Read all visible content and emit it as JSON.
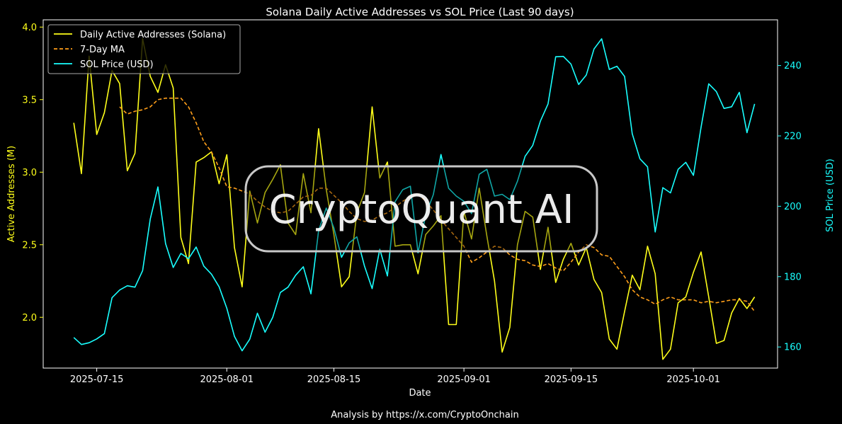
{
  "chart_data": {
    "type": "line",
    "title": "Solana Daily Active Addresses vs SOL Price (Last 90 days)",
    "xlabel": "Date",
    "ylabel_left": "Active Addresses (M)",
    "ylabel_right": "SOL Price (USD)",
    "footer": "Analysis by https://x.com/CryptoOnchain",
    "watermark": "CryptoQuant AI",
    "x_start": "2025-07-12",
    "x_end": "2025-10-08",
    "xlim": [
      "2025-07-08",
      "2025-10-12"
    ],
    "ylim_left": [
      1.65,
      4.05
    ],
    "ylim_right": [
      154,
      253
    ],
    "x_ticks": [
      "2025-07-15",
      "2025-08-01",
      "2025-08-15",
      "2025-09-01",
      "2025-09-15",
      "2025-10-01"
    ],
    "y_ticks_left": [
      "2.0",
      "2.5",
      "3.0",
      "3.5",
      "4.0"
    ],
    "y_ticks_right": [
      "160",
      "180",
      "200",
      "220",
      "240"
    ],
    "grid": false,
    "legend_position": "top-left",
    "colors": {
      "background": "#000000",
      "active": "#ffff1a",
      "ma": "#ff9f1a",
      "price": "#19ffff",
      "text": "#ffffff"
    },
    "series": [
      {
        "name": "Daily Active Addresses (Solana)",
        "axis": "left",
        "style": "solid",
        "values": [
          3.34,
          2.99,
          3.8,
          3.26,
          3.41,
          3.7,
          3.61,
          3.01,
          3.13,
          3.92,
          3.66,
          3.55,
          3.74,
          3.58,
          2.55,
          2.37,
          3.07,
          3.1,
          3.14,
          2.92,
          3.12,
          2.48,
          2.21,
          2.87,
          2.65,
          2.86,
          2.95,
          3.05,
          2.65,
          2.57,
          2.99,
          2.72,
          3.3,
          2.88,
          2.57,
          2.21,
          2.28,
          2.72,
          2.86,
          3.45,
          2.96,
          3.07,
          2.49,
          2.5,
          2.5,
          2.3,
          2.57,
          2.63,
          2.7,
          1.95,
          1.95,
          2.73,
          2.54,
          2.89,
          2.56,
          2.25,
          1.76,
          1.93,
          2.5,
          2.73,
          2.69,
          2.33,
          2.62,
          2.24,
          2.4,
          2.51,
          2.36,
          2.48,
          2.26,
          2.17,
          1.85,
          1.78,
          2.04,
          2.29,
          2.19,
          2.49,
          2.3,
          1.71,
          1.78,
          2.1,
          2.14,
          2.31,
          2.45,
          2.14,
          1.82,
          1.84,
          2.03,
          2.13,
          2.06,
          2.14
        ]
      },
      {
        "name": "7-Day MA",
        "axis": "left",
        "style": "dashed",
        "values": [
          null,
          null,
          null,
          null,
          null,
          null,
          3.45,
          3.4,
          3.42,
          3.43,
          3.45,
          3.5,
          3.51,
          3.51,
          3.51,
          3.45,
          3.34,
          3.21,
          3.14,
          3.03,
          2.9,
          2.89,
          2.87,
          2.85,
          2.8,
          2.76,
          2.73,
          2.72,
          2.73,
          2.78,
          2.83,
          2.84,
          2.89,
          2.89,
          2.84,
          2.79,
          2.73,
          2.68,
          2.66,
          2.67,
          2.7,
          2.72,
          2.76,
          2.8,
          2.83,
          2.85,
          2.8,
          2.74,
          2.67,
          2.61,
          2.55,
          2.49,
          2.38,
          2.41,
          2.45,
          2.49,
          2.48,
          2.43,
          2.4,
          2.39,
          2.36,
          2.35,
          2.37,
          2.34,
          2.32,
          2.38,
          2.45,
          2.5,
          2.48,
          2.43,
          2.42,
          2.35,
          2.28,
          2.19,
          2.14,
          2.12,
          2.09,
          2.12,
          2.14,
          2.12,
          2.12,
          2.12,
          2.1,
          2.11,
          2.1,
          2.11,
          2.12,
          2.12,
          2.11,
          2.04
        ]
      },
      {
        "name": "SOL Price (USD)",
        "axis": "right",
        "style": "solid",
        "values": [
          162.7,
          160.7,
          161.2,
          162.3,
          163.8,
          174.0,
          176.2,
          177.4,
          177.0,
          181.7,
          196.4,
          205.5,
          189.4,
          182.6,
          186.6,
          185.1,
          188.4,
          183.0,
          180.7,
          177.1,
          171.0,
          163.0,
          158.9,
          162.2,
          169.6,
          164.2,
          168.4,
          175.5,
          177.0,
          180.4,
          182.8,
          175.1,
          193.1,
          199.5,
          193.8,
          185.5,
          189.6,
          191.3,
          183.0,
          176.6,
          187.8,
          180.2,
          201.3,
          204.7,
          205.7,
          186.8,
          197.5,
          203.3,
          214.7,
          205.1,
          202.9,
          201.4,
          197.9,
          209.1,
          210.5,
          202.9,
          203.4,
          201.9,
          207.1,
          214.2,
          217.3,
          224.2,
          229.1,
          242.5,
          242.6,
          240.4,
          234.6,
          237.3,
          244.7,
          247.6,
          238.9,
          239.8,
          236.9,
          220.6,
          213.5,
          211.2,
          192.7,
          205.3,
          203.8,
          210.5,
          212.5,
          208.8,
          222.5,
          234.8,
          232.6,
          227.8,
          228.3,
          232.4,
          220.9,
          229.1
        ]
      }
    ]
  }
}
